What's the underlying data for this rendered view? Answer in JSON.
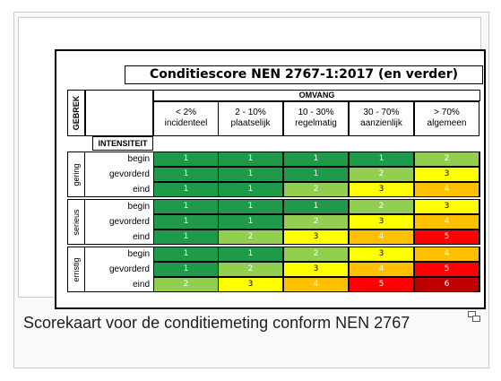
{
  "title": "Conditiescore NEN 2767-1:2017 (en verder)",
  "gebrek_label": "GEBREK",
  "omvang_label": "OMVANG",
  "intensiteit_label": "INTENSITEIT",
  "columns": [
    {
      "range": "< 2%",
      "name": "incidenteel"
    },
    {
      "range": "2 - 10%",
      "name": "plaatselijk"
    },
    {
      "range": "10 - 30%",
      "name": "regelmatig"
    },
    {
      "range": "30 - 70%",
      "name": "aanzienlijk"
    },
    {
      "range": "> 70%",
      "name": "algemeen"
    }
  ],
  "groups": [
    {
      "name": "gering",
      "rows": [
        {
          "label": "begin",
          "scores": [
            1,
            1,
            1,
            1,
            2
          ]
        },
        {
          "label": "gevorderd",
          "scores": [
            1,
            1,
            1,
            2,
            3
          ]
        },
        {
          "label": "eind",
          "scores": [
            1,
            1,
            2,
            3,
            4
          ]
        }
      ]
    },
    {
      "name": "serieus",
      "rows": [
        {
          "label": "begin",
          "scores": [
            1,
            1,
            1,
            2,
            3
          ]
        },
        {
          "label": "gevorderd",
          "scores": [
            1,
            1,
            2,
            3,
            4
          ]
        },
        {
          "label": "eind",
          "scores": [
            1,
            2,
            3,
            4,
            5
          ]
        }
      ]
    },
    {
      "name": "ernstig",
      "rows": [
        {
          "label": "begin",
          "scores": [
            1,
            1,
            2,
            3,
            4
          ]
        },
        {
          "label": "gevorderd",
          "scores": [
            1,
            2,
            3,
            4,
            5
          ]
        },
        {
          "label": "eind",
          "scores": [
            2,
            3,
            4,
            5,
            6
          ]
        }
      ]
    }
  ],
  "score_colors": {
    "1": "#1e9a4a",
    "2": "#92cf50",
    "3": "#ffff00",
    "4": "#ffc000",
    "5": "#ff0000",
    "6": "#c00000"
  },
  "score_text_colors": {
    "1": "#ffffff",
    "2": "#ffffff",
    "3": "#000000",
    "4": "#ffffff",
    "5": "#ffffff",
    "6": "#ffffff"
  },
  "caption": "Scorekaart voor de conditiemeting conform NEN 2767",
  "enlarge_icon": "enlarge-icon"
}
